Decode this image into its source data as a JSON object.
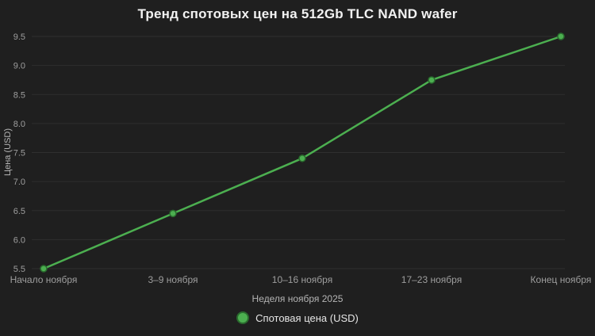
{
  "chart_data": {
    "type": "line",
    "title": "Тренд спотовых цен на 512Gb TLC NAND wafer",
    "xlabel": "Неделя ноября 2025",
    "ylabel": "Цена (USD)",
    "categories": [
      "Начало ноября",
      "3–9 ноября",
      "10–16 ноября",
      "17–23 ноября",
      "Конец ноября"
    ],
    "values": [
      5.5,
      6.45,
      7.4,
      8.75,
      9.5
    ],
    "ylim": [
      5.5,
      9.5
    ],
    "ytick_step": 0.5,
    "grid": true,
    "legend": {
      "label": "Спотовая цена (USD)",
      "position": "bottom"
    },
    "colors": {
      "background": "#1f1f1f",
      "grid": "#2f2f2f",
      "line": "#4caf50",
      "marker": "#4caf50",
      "marker_edge": "#2a6b2e",
      "tick_text": "#9e9e9e",
      "title_text": "#f2f2f2",
      "axis_label_text": "#b5b5b5",
      "legend_text": "#e6e6e6"
    }
  }
}
